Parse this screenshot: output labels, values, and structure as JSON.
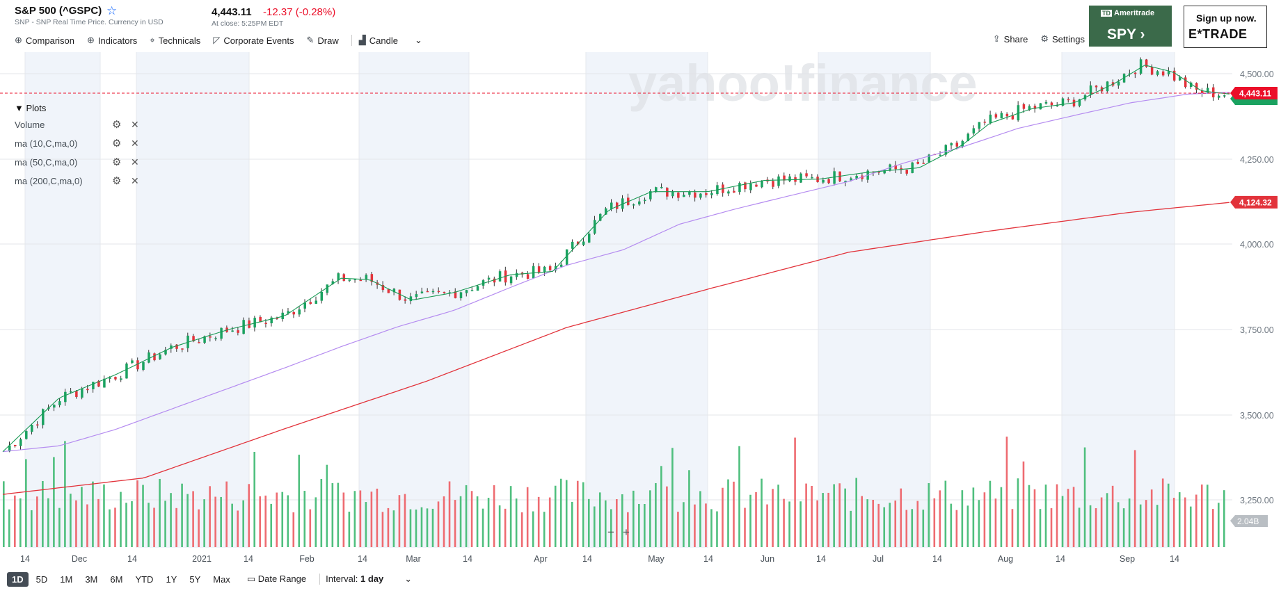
{
  "header": {
    "title": "S&P 500 (^GSPC)",
    "subtitle": "SNP - SNP Real Time Price. Currency in USD",
    "price": "4,443.11",
    "change": "-12.37 (-0.28%)",
    "close_time": "At close: 5:25PM EDT"
  },
  "toolbar": {
    "comparison": "Comparison",
    "indicators": "Indicators",
    "technicals": "Technicals",
    "corporate_events": "Corporate Events",
    "draw": "Draw",
    "candle": "Candle",
    "share": "Share",
    "settings": "Settings"
  },
  "ads": {
    "ad1_brand": "Ameritrade",
    "ad1_symbol": "SPY",
    "ad2_text": "Sign up now.",
    "ad2_brand": "E*TRADE"
  },
  "watermark": "yahoo!finance",
  "plots": {
    "header": "Plots",
    "items": [
      "Volume",
      "ma (10,C,ma,0)",
      "ma (50,C,ma,0)",
      "ma (200,C,ma,0)"
    ]
  },
  "ranges": [
    "1D",
    "5D",
    "1M",
    "3M",
    "6M",
    "YTD",
    "1Y",
    "5Y",
    "Max"
  ],
  "date_range": "Date Range",
  "interval_label": "Interval:",
  "interval_value": "1 day",
  "colors": {
    "up": "#1aa260",
    "down": "#e2333b",
    "ma10": "#1a9a55",
    "ma50": "#b58cf0",
    "ma200": "#e2333b",
    "current": "#eb0f29",
    "volume_badge": "#b9bec3"
  },
  "chart_data": {
    "type": "candlestick",
    "ylim": [
      3360,
      4560
    ],
    "y_ticks": [
      "4,500.00",
      "4,250.00",
      "4,000.00",
      "3,750.00",
      "3,500.00",
      "3,250.00"
    ],
    "x_ticks": [
      "14",
      "Dec",
      "14",
      "2021",
      "14",
      "Feb",
      "14",
      "Mar",
      "14",
      "Apr",
      "14",
      "May",
      "14",
      "Jun",
      "14",
      "Jul",
      "14",
      "Aug",
      "14",
      "Sep",
      "14"
    ],
    "current_price_label": "4,443.11",
    "ma200_label": "4,124.32",
    "volume_label": "2.04B",
    "ma10_anchor": [
      [
        0,
        3395
      ],
      [
        40,
        3552
      ],
      [
        80,
        3620
      ],
      [
        120,
        3700
      ],
      [
        160,
        3752
      ],
      [
        200,
        3792
      ],
      [
        240,
        3902
      ],
      [
        260,
        3898
      ],
      [
        290,
        3838
      ],
      [
        320,
        3860
      ],
      [
        360,
        3912
      ],
      [
        390,
        3922
      ],
      [
        430,
        4102
      ],
      [
        460,
        4155
      ],
      [
        500,
        4155
      ],
      [
        540,
        4188
      ],
      [
        580,
        4192
      ],
      [
        610,
        4210
      ],
      [
        650,
        4225
      ],
      [
        680,
        4290
      ],
      [
        700,
        4355
      ],
      [
        730,
        4398
      ],
      [
        760,
        4415
      ],
      [
        790,
        4475
      ],
      [
        810,
        4525
      ],
      [
        830,
        4505
      ],
      [
        850,
        4450
      ],
      [
        871,
        4440
      ]
    ],
    "ma50_anchor": [
      [
        0,
        3395
      ],
      [
        40,
        3412
      ],
      [
        80,
        3460
      ],
      [
        120,
        3520
      ],
      [
        160,
        3580
      ],
      [
        200,
        3640
      ],
      [
        240,
        3702
      ],
      [
        280,
        3760
      ],
      [
        320,
        3808
      ],
      [
        360,
        3875
      ],
      [
        400,
        3940
      ],
      [
        440,
        3985
      ],
      [
        480,
        4060
      ],
      [
        520,
        4105
      ],
      [
        560,
        4145
      ],
      [
        600,
        4185
      ],
      [
        640,
        4240
      ],
      [
        680,
        4285
      ],
      [
        720,
        4340
      ],
      [
        760,
        4378
      ],
      [
        800,
        4415
      ],
      [
        840,
        4440
      ],
      [
        871,
        4446
      ]
    ],
    "ma200_anchor": [
      [
        0,
        3270
      ],
      [
        100,
        3318
      ],
      [
        200,
        3462
      ],
      [
        300,
        3600
      ],
      [
        400,
        3758
      ],
      [
        500,
        3870
      ],
      [
        600,
        3978
      ],
      [
        700,
        4040
      ],
      [
        800,
        4095
      ],
      [
        871,
        4124
      ]
    ]
  }
}
